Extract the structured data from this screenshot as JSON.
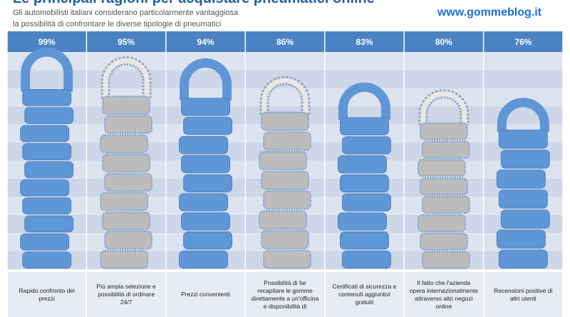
{
  "header": {
    "title_partial": "Le principali ragioni per acquistare pneumatici online",
    "subtitle_line1": "Gli automobilisti italiani  considerano particolarmente vantaggiosa",
    "subtitle_line2": "la possibilità  di confrontare le diverse tipologie di pneumatici",
    "brand": "www.gommeblog.it"
  },
  "colors": {
    "header_bar": "#4a82c4",
    "band_light": "#dde4f0",
    "band_dark": "#cdd7e8",
    "tire_blue": "#5f96d6",
    "tire_grey": "#bcbcbc",
    "caption_bg": "#e6ecf5"
  },
  "chart_data": {
    "type": "bar",
    "categories": [
      "Rapido confronto dei prezzi",
      "Più ampia selezione e possibilità di ordinare 24/7",
      "Prezzi convenienti",
      "Possibilità di far recapitare le gomme direttamente a un'officina e disponibilità di",
      "Certificati di sicurezza e contenuti aggiuntivi gratuiti",
      "Il fatto che l'azienda opera internazionalmente attraverso altri negozi online",
      "Recensioni positive di altri utenti"
    ],
    "values": [
      99,
      95,
      94,
      86,
      83,
      80,
      76
    ],
    "value_labels": [
      "99%",
      "95%",
      "94%",
      "86%",
      "83%",
      "80%",
      "76%"
    ],
    "unit": "%",
    "ylim": [
      0,
      100
    ],
    "mark_style": [
      "blue",
      "grey",
      "blue",
      "grey",
      "blue",
      "grey",
      "blue"
    ]
  }
}
